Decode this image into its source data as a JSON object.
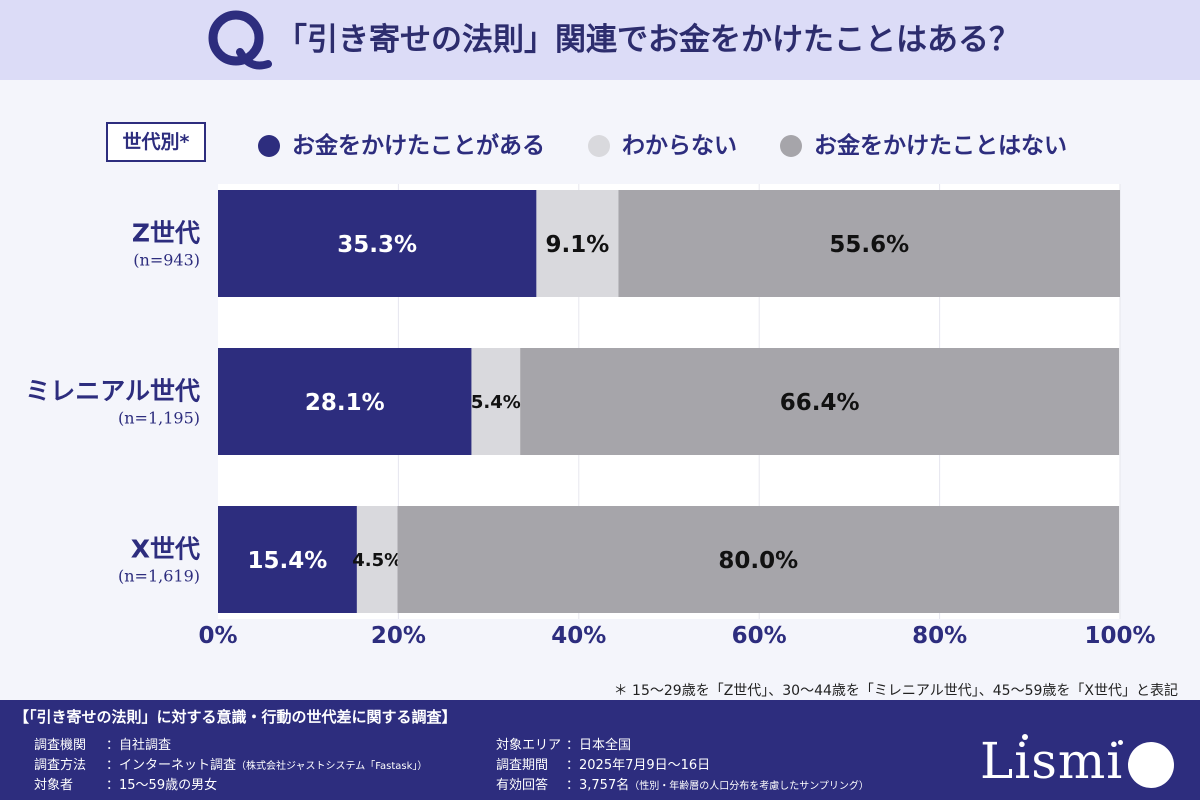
{
  "header": {
    "q_letter": "Q",
    "title": "「引き寄せの法則」関連でお金をかけたことはある？"
  },
  "legend": {
    "group_label": "世代別*",
    "items": [
      {
        "label": "お金をかけたことがある",
        "color": "#2d2d7e"
      },
      {
        "label": "わからない",
        "color": "#d9d9dd"
      },
      {
        "label": "お金をかけたことはない",
        "color": "#a6a5aa"
      }
    ]
  },
  "chart_data": {
    "type": "bar",
    "orientation": "horizontal",
    "stacked": true,
    "categories": [
      "Z世代",
      "ミレニアル世代",
      "X世代"
    ],
    "category_notes": [
      "(n=943)",
      "(n=1,195)",
      "(n=1,619)"
    ],
    "series": [
      {
        "name": "お金をかけたことがある",
        "values": [
          35.3,
          28.1,
          15.4
        ],
        "labels": [
          "35.3%",
          "28.1%",
          "15.4%"
        ],
        "color": "#2d2d7e",
        "label_color": "#ffffff"
      },
      {
        "name": "わからない",
        "values": [
          9.1,
          5.4,
          4.5
        ],
        "labels": [
          "9.1%",
          "5.4%",
          "4.5%"
        ],
        "color": "#d9d9dd",
        "label_color": "#111111"
      },
      {
        "name": "お金をかけたことはない",
        "values": [
          55.6,
          66.4,
          80.0
        ],
        "labels": [
          "55.6%",
          "66.4%",
          "80.0%"
        ],
        "color": "#a6a5aa",
        "label_color": "#111111"
      }
    ],
    "xlim": [
      0,
      100
    ],
    "x_ticks": [
      0,
      20,
      40,
      60,
      80,
      100
    ],
    "x_tick_labels": [
      "0%",
      "20%",
      "40%",
      "60%",
      "80%",
      "100%"
    ],
    "grid": true,
    "legend_position": "top"
  },
  "footnote": "＊ 15～29歳を「Z世代」、30～44歳を「ミレニアル世代」、45～59歳を「X世代」と表記",
  "survey": {
    "title": "【「引き寄せの法則」に対する意識・行動の世代差に関する調査】",
    "left": [
      {
        "label": "調査機関",
        "value": "：自社調査",
        "note": ""
      },
      {
        "label": "調査方法",
        "value": "：インターネット調査",
        "note": "（株式会社ジャストシステム「Fastask」）"
      },
      {
        "label": "対象者",
        "value": "：15～59歳の男女",
        "note": ""
      }
    ],
    "right": [
      {
        "label": "対象エリア",
        "value": "：日本全国",
        "note": ""
      },
      {
        "label": "調査期間",
        "value": "：2025年7月9日～16日",
        "note": ""
      },
      {
        "label": "有効回答",
        "value": "：3,757名",
        "note": "（性別・年齢層の人口分布を考慮したサンプリング）"
      }
    ]
  },
  "logo": {
    "text": "Lismi"
  }
}
